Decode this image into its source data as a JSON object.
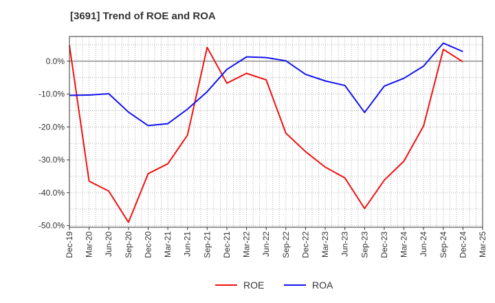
{
  "chart_data": {
    "type": "line",
    "title": "[3691]  Trend of ROE and ROA",
    "xlabel": "",
    "ylabel": "",
    "categories": [
      "Dec-19",
      "Mar-20",
      "Jun-20",
      "Sep-20",
      "Dec-20",
      "Mar-21",
      "Jun-21",
      "Sep-21",
      "Dec-21",
      "Mar-22",
      "Jun-22",
      "Sep-22",
      "Dec-22",
      "Mar-23",
      "Jun-23",
      "Sep-23",
      "Dec-23",
      "Mar-24",
      "Jun-24",
      "Sep-24",
      "Dec-24",
      "Mar-25"
    ],
    "y_ticks": [
      "0.0%",
      "-10.0%",
      "-20.0%",
      "-30.0%",
      "-40.0%",
      "-50.0%"
    ],
    "ylim": [
      -50.5,
      7.5
    ],
    "grid": true,
    "legend_position": "bottom",
    "series": [
      {
        "name": "ROE",
        "color": "#ee1111",
        "values": [
          4.8,
          -36.5,
          -39.5,
          -49.0,
          -34.2,
          -31.2,
          -22.5,
          4.2,
          -6.7,
          -3.7,
          -5.7,
          -21.9,
          -27.5,
          -32.2,
          -35.5,
          -44.8,
          -36.2,
          -30.4,
          -19.7,
          3.6,
          -0.2,
          null
        ]
      },
      {
        "name": "ROA",
        "color": "#1111ee",
        "values": [
          -10.4,
          -10.3,
          -9.9,
          -15.5,
          -19.6,
          -19.0,
          -14.6,
          -9.3,
          -2.5,
          1.3,
          1.1,
          0.1,
          -4.0,
          -6.0,
          -7.4,
          -15.6,
          -7.6,
          -5.2,
          -1.5,
          5.5,
          2.9,
          null
        ]
      }
    ]
  }
}
